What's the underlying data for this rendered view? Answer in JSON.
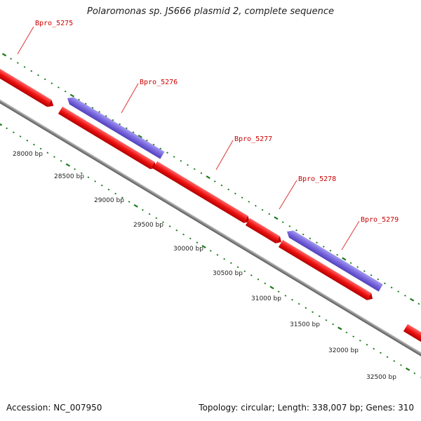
{
  "title": "Polaromonas sp. JS666 plasmid 2, complete sequence",
  "accession": "Accession: NC_007950",
  "stats": "Topology: circular; Length: 338,007 bp; Genes: 310",
  "colors": {
    "forward_gene": "#ee1111",
    "reverse_gene": "#7766dd",
    "backbone": "#888888",
    "ticks": "#1a7a1a",
    "label_text": "#cc0000",
    "leader_line": "#dd3333"
  },
  "position_ticks": [
    {
      "label": "28000 bp"
    },
    {
      "label": "28500 bp"
    },
    {
      "label": "29000 bp"
    },
    {
      "label": "29500 bp"
    },
    {
      "label": "30000 bp"
    },
    {
      "label": "30500 bp"
    },
    {
      "label": "31000 bp"
    },
    {
      "label": "31500 bp"
    },
    {
      "label": "32000 bp"
    },
    {
      "label": "32500 bp"
    }
  ],
  "gene_labels": [
    {
      "name": "Bpro_5275"
    },
    {
      "name": "Bpro_5276"
    },
    {
      "name": "Bpro_5277"
    },
    {
      "name": "Bpro_5278"
    },
    {
      "name": "Bpro_5279"
    }
  ]
}
